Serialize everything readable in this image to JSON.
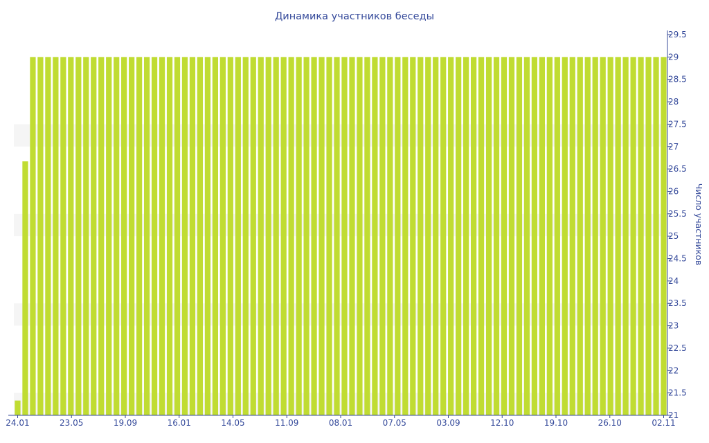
{
  "chart_data": {
    "type": "bar",
    "title": "Динамика участников беседы",
    "xlabel": "",
    "ylabel": "Число участников",
    "ylim": [
      21,
      29.5
    ],
    "y_axis_side": "right",
    "y_ticks": [
      "21",
      "21.5",
      "22",
      "22.5",
      "23",
      "23.5",
      "24",
      "24.5",
      "25",
      "25.5",
      "26",
      "26.5",
      "27",
      "27.5",
      "28",
      "28.5",
      "29",
      "29.5"
    ],
    "x_tick_labels": [
      "24.01",
      "23.05",
      "19.09",
      "16.01",
      "14.05",
      "11.09",
      "08.01",
      "07.05",
      "03.09",
      "12.10",
      "19.10",
      "26.10",
      "02.11"
    ],
    "bar_color": "#c0dc32",
    "band_color": "#f5f5f5",
    "text_color": "#34499a",
    "values": [
      21.33,
      26.67,
      29,
      29,
      29,
      29,
      29,
      29,
      29,
      29,
      29,
      29,
      29,
      29,
      29,
      29,
      29,
      29,
      29,
      29,
      29,
      29,
      29,
      29,
      29,
      29,
      29,
      29,
      29,
      29,
      29,
      29,
      29,
      29,
      29,
      29,
      29,
      29,
      29,
      29,
      29,
      29,
      29,
      29,
      29,
      29,
      29,
      29,
      29,
      29,
      29,
      29,
      29,
      29,
      29,
      29,
      29,
      29,
      29,
      29,
      29,
      29,
      29,
      29,
      29,
      29,
      29,
      29,
      29,
      29,
      29,
      29,
      29,
      29,
      29,
      29,
      29,
      29,
      29,
      29,
      29,
      29,
      29,
      29,
      29,
      29
    ]
  }
}
